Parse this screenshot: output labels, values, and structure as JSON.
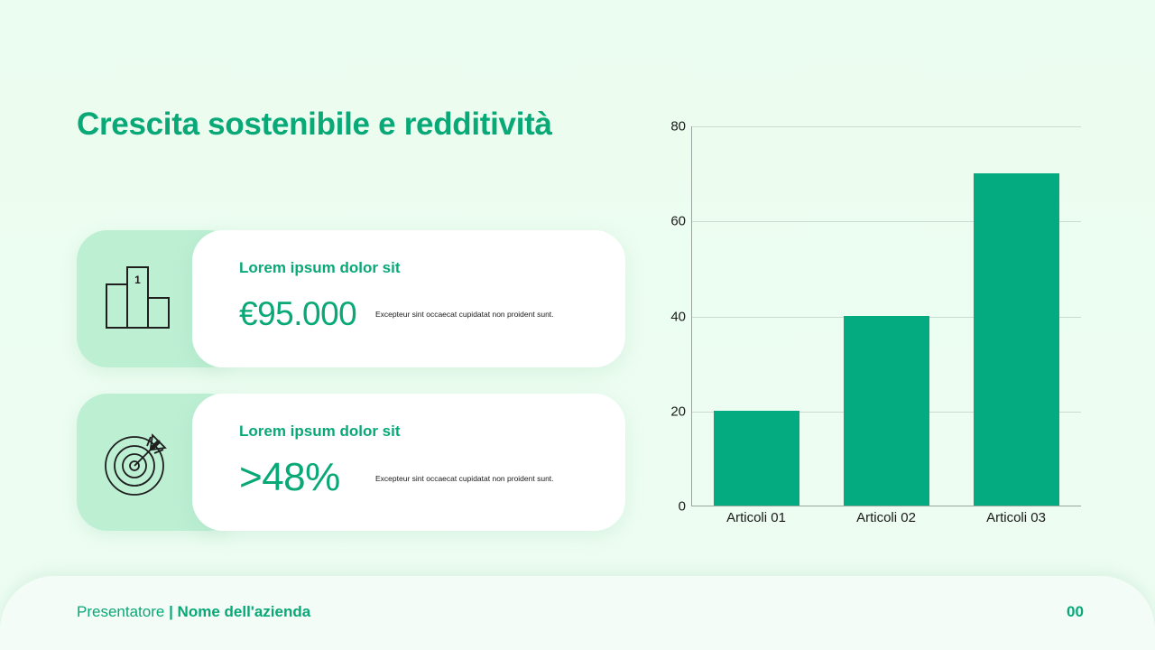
{
  "slide": {
    "title": "Crescita sostenibile e redditività"
  },
  "cards": [
    {
      "icon": "podium-icon",
      "heading": "Lorem ipsum dolor sit",
      "value": "€95.000",
      "description": "Excepteur sint occaecat cupidatat non proident sunt."
    },
    {
      "icon": "target-arrow-icon",
      "heading": "Lorem ipsum dolor sit",
      "value": ">48%",
      "description": "Excepteur sint occaecat cupidatat non proident sunt."
    }
  ],
  "chart_data": {
    "type": "bar",
    "title": "",
    "categories": [
      "Articoli 01",
      "Articoli 02",
      "Articoli 03"
    ],
    "values": [
      20,
      40,
      70
    ],
    "xlabel": "",
    "ylabel": "",
    "ylim": [
      0,
      80
    ],
    "yticks": [
      "0",
      "20",
      "40",
      "60",
      "80"
    ],
    "grid": true,
    "legend": null,
    "bar_color": "#04aa80"
  },
  "footer": {
    "presenter": "Presentatore",
    "separator": " | ",
    "company": "Nome dell'azienda",
    "page_number": "00"
  },
  "colors": {
    "accent": "#08a877",
    "card_tab": "#bdefd3",
    "background": "#ebfdf0"
  }
}
